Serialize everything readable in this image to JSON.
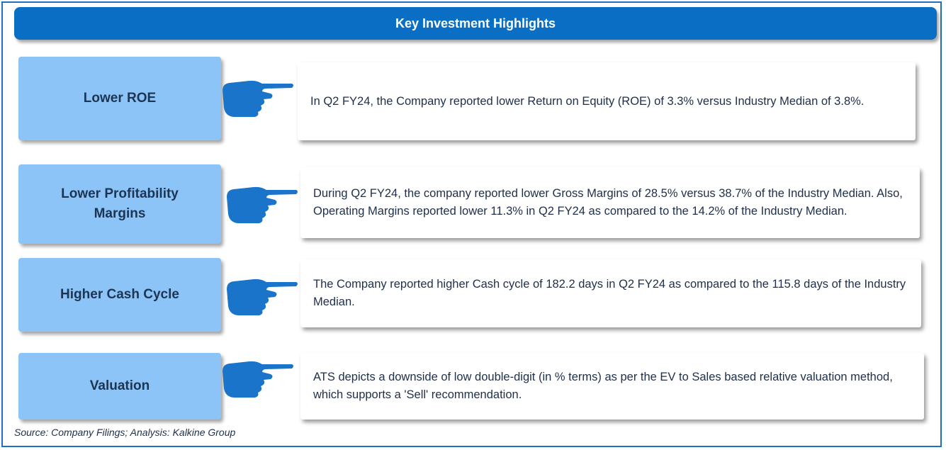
{
  "title": "Key Investment Highlights",
  "rows": [
    {
      "label": "Lower ROE",
      "text": "In Q2 FY24,  the  Company reported lower Return on Equity (ROE) of 3.3% versus Industry Median of 3.8%."
    },
    {
      "label": "Lower Profitability Margins",
      "text": "During Q2 FY24, the company reported lower Gross Margins of 28.5% versus 38.7% of the Industry Median. Also, Operating Margins reported lower 11.3% in Q2 FY24 as compared to the 14.2% of the Industry Median."
    },
    {
      "label": "Higher Cash Cycle",
      "text": "The Company reported higher Cash cycle of 182.2 days in Q2 FY24 as compared to  the 115.8 days of the Industry Median."
    },
    {
      "label": "Valuation",
      "text": "ATS depicts a downside of low double-digit (in % terms) as per the EV to Sales  based relative valuation method, which supports a 'Sell' recommendation."
    }
  ],
  "source": "Source: Company Filings; Analysis: Kalkine Group",
  "colors": {
    "title_bar": "#0a6fc4",
    "label_box": "#8cc4f8",
    "hand_icon": "#1a74c9",
    "frame": "#1f6fc4"
  },
  "icons": [
    "pointing-hand-icon"
  ]
}
